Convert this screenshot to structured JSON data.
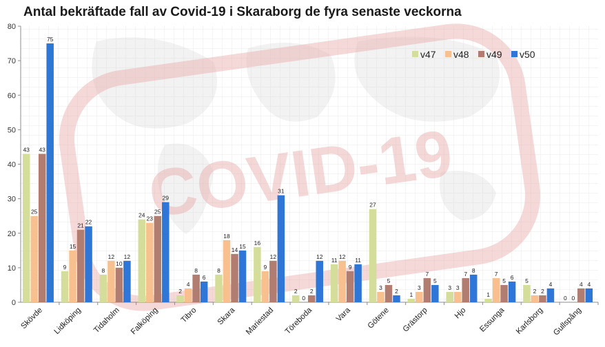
{
  "chart_data": {
    "type": "bar",
    "title": "Antal bekräftade fall av Covid-19 i Skaraborg de fyra senaste veckorna",
    "xlabel": "",
    "ylabel": "",
    "ylim": [
      0,
      80
    ],
    "yticks": [
      0,
      10,
      20,
      30,
      40,
      50,
      60,
      70,
      80
    ],
    "grid": false,
    "legend_position": "top-right",
    "categories": [
      "Skövde",
      "Lidköping",
      "Tidaholm",
      "Falköping",
      "Tibro",
      "Skara",
      "Mariestad",
      "Töreboda",
      "Vara",
      "Götene",
      "Grästorp",
      "Hjo",
      "Essunga",
      "Karlsborg",
      "Gullspång"
    ],
    "series": [
      {
        "name": "v47",
        "color": "#d4dd9a",
        "values": [
          43,
          9,
          8,
          24,
          2,
          8,
          16,
          2,
          11,
          27,
          1,
          3,
          1,
          5,
          0
        ]
      },
      {
        "name": "v48",
        "color": "#f7c08e",
        "values": [
          25,
          15,
          12,
          23,
          4,
          18,
          9,
          0,
          12,
          3,
          3,
          3,
          7,
          2,
          0
        ]
      },
      {
        "name": "v49",
        "color": "#b07d70",
        "values": [
          43,
          21,
          10,
          25,
          8,
          14,
          12,
          2,
          9,
          5,
          7,
          7,
          5,
          2,
          4
        ]
      },
      {
        "name": "v50",
        "color": "#2f77d6",
        "values": [
          75,
          22,
          12,
          29,
          6,
          15,
          31,
          12,
          11,
          2,
          5,
          8,
          6,
          4,
          4
        ]
      }
    ],
    "watermark_text": "COVID-19"
  }
}
